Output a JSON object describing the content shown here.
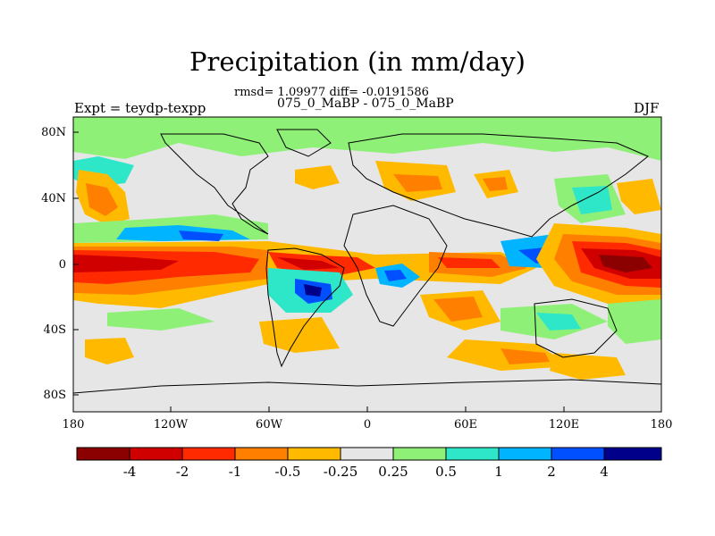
{
  "title": "Precipitation (in mm/day)",
  "stats": "rmsd= 1.09977 diff= -0.0191586",
  "subtitle": "075_0_MaBP - 075_0_MaBP",
  "left_label": "Expt = teydp-texpp",
  "season": "DJF",
  "lat_ticks": [
    "80N",
    "40N",
    "0",
    "40S",
    "80S"
  ],
  "lon_ticks": [
    "180",
    "120W",
    "60W",
    "0",
    "60E",
    "120E",
    "180"
  ],
  "colorbar": {
    "colors": [
      "#8b0000",
      "#d10000",
      "#ff2a00",
      "#ff8000",
      "#ffba00",
      "#e6e6e6",
      "#8ff078",
      "#2ee6c8",
      "#00b4ff",
      "#0050ff",
      "#00008b"
    ],
    "labels": [
      "-4",
      "-2",
      "-1",
      "-0.5",
      "-0.25",
      "0.25",
      "0.5",
      "1",
      "2",
      "4"
    ]
  },
  "chart_data": {
    "type": "heatmap",
    "title": "Precipitation (in mm/day)",
    "variable": "precipitation difference",
    "units": "mm/day",
    "season": "DJF",
    "rmsd": 1.09977,
    "diff": -0.0191586,
    "x_range": [
      -180,
      180
    ],
    "y_range": [
      -90,
      90
    ],
    "contour_levels": [
      -4,
      -2,
      -1,
      -0.5,
      -0.25,
      0.25,
      0.5,
      1,
      2,
      4
    ]
  }
}
